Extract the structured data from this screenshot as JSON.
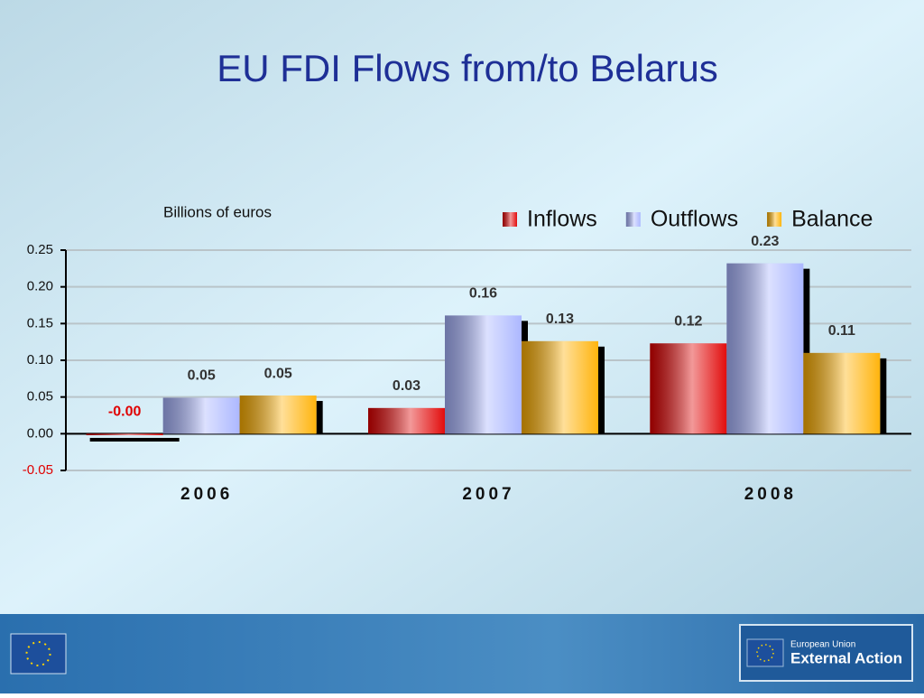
{
  "chart_data": {
    "type": "bar",
    "title": "EU FDI Flows from/to Belarus",
    "y_axis_label": "Billions of euros",
    "categories": [
      "2006",
      "2007",
      "2008"
    ],
    "series": [
      {
        "name": "Inflows",
        "color": "#e00000",
        "values": [
          -0.002,
          0.035,
          0.123
        ],
        "value_labels": [
          "-0.00",
          "0.03",
          "0.12"
        ]
      },
      {
        "name": "Outflows",
        "color": "#a8b4ff",
        "values": [
          0.049,
          0.161,
          0.232
        ],
        "value_labels": [
          "0.05",
          "0.16",
          "0.23"
        ]
      },
      {
        "name": "Balance",
        "color": "#ffb000",
        "values": [
          0.052,
          0.126,
          0.11
        ],
        "value_labels": [
          "0.05",
          "0.13",
          "0.11"
        ]
      }
    ],
    "ylim": [
      -0.05,
      0.25
    ],
    "yticks": [
      -0.05,
      {
        "value": 0,
        "label": "0.00"
      },
      0.05,
      {
        "value": 0.1,
        "label": "0.10"
      },
      0.15,
      {
        "value": 0.2,
        "label": "0.20"
      },
      0.25
    ],
    "grid": true,
    "legend": "top-right"
  },
  "footer": {
    "logo_line1": "European Union",
    "logo_line2": "External Action"
  }
}
